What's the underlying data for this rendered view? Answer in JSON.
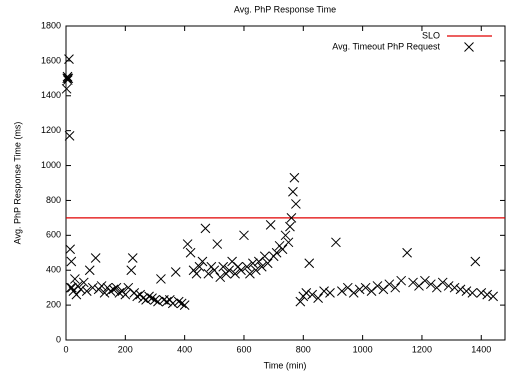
{
  "chart_data": {
    "type": "scatter",
    "title": "Avg. PhP Response Time",
    "x_label": "Time (min)",
    "y_label": "Avg. PhP Response Time (ms)",
    "xlim": [
      0,
      1480
    ],
    "ylim": [
      0,
      1800
    ],
    "xticks": [
      0,
      200,
      400,
      600,
      800,
      1000,
      1200,
      1400
    ],
    "yticks": [
      0,
      200,
      400,
      600,
      800,
      1000,
      1200,
      1400,
      1600,
      1800
    ],
    "slo": {
      "name": "SLO",
      "value": 700,
      "color": "#e00000"
    },
    "series": [
      {
        "name": "Avg. Timeout PhP Request",
        "color": "#000000",
        "x": [
          2,
          4,
          5,
          6,
          8,
          10,
          12,
          14,
          16,
          18,
          20,
          25,
          30,
          35,
          40,
          50,
          60,
          70,
          80,
          90,
          100,
          110,
          120,
          130,
          140,
          150,
          160,
          170,
          180,
          190,
          200,
          210,
          220,
          225,
          230,
          240,
          250,
          260,
          270,
          280,
          290,
          300,
          310,
          320,
          330,
          340,
          350,
          360,
          370,
          380,
          390,
          400,
          410,
          420,
          430,
          440,
          450,
          460,
          470,
          480,
          490,
          500,
          510,
          520,
          530,
          540,
          550,
          560,
          570,
          580,
          590,
          600,
          610,
          620,
          630,
          640,
          650,
          660,
          670,
          680,
          690,
          700,
          710,
          720,
          730,
          740,
          750,
          755,
          760,
          765,
          770,
          775,
          790,
          800,
          810,
          820,
          830,
          850,
          870,
          890,
          910,
          930,
          950,
          970,
          990,
          1010,
          1030,
          1050,
          1070,
          1090,
          1110,
          1130,
          1150,
          1170,
          1190,
          1210,
          1230,
          1250,
          1270,
          1290,
          1310,
          1330,
          1350,
          1370,
          1380,
          1400,
          1420,
          1440
        ],
        "values": [
          1440,
          1500,
          1510,
          1490,
          1500,
          1610,
          1170,
          520,
          300,
          450,
          300,
          280,
          350,
          260,
          310,
          290,
          330,
          280,
          400,
          300,
          470,
          290,
          310,
          270,
          300,
          280,
          290,
          300,
          270,
          280,
          260,
          300,
          400,
          470,
          270,
          250,
          260,
          240,
          230,
          250,
          240,
          230,
          220,
          350,
          230,
          220,
          230,
          210,
          390,
          220,
          210,
          200,
          550,
          500,
          400,
          380,
          420,
          450,
          640,
          380,
          420,
          400,
          550,
          360,
          420,
          380,
          400,
          450,
          380,
          420,
          400,
          600,
          420,
          380,
          440,
          400,
          450,
          420,
          480,
          440,
          660,
          480,
          500,
          540,
          520,
          600,
          560,
          650,
          700,
          850,
          930,
          780,
          220,
          250,
          270,
          440,
          260,
          240,
          280,
          270,
          560,
          280,
          300,
          270,
          290,
          300,
          280,
          310,
          290,
          320,
          300,
          340,
          500,
          330,
          310,
          340,
          320,
          300,
          330,
          310,
          300,
          290,
          280,
          270,
          450,
          270,
          260,
          250
        ]
      }
    ]
  }
}
